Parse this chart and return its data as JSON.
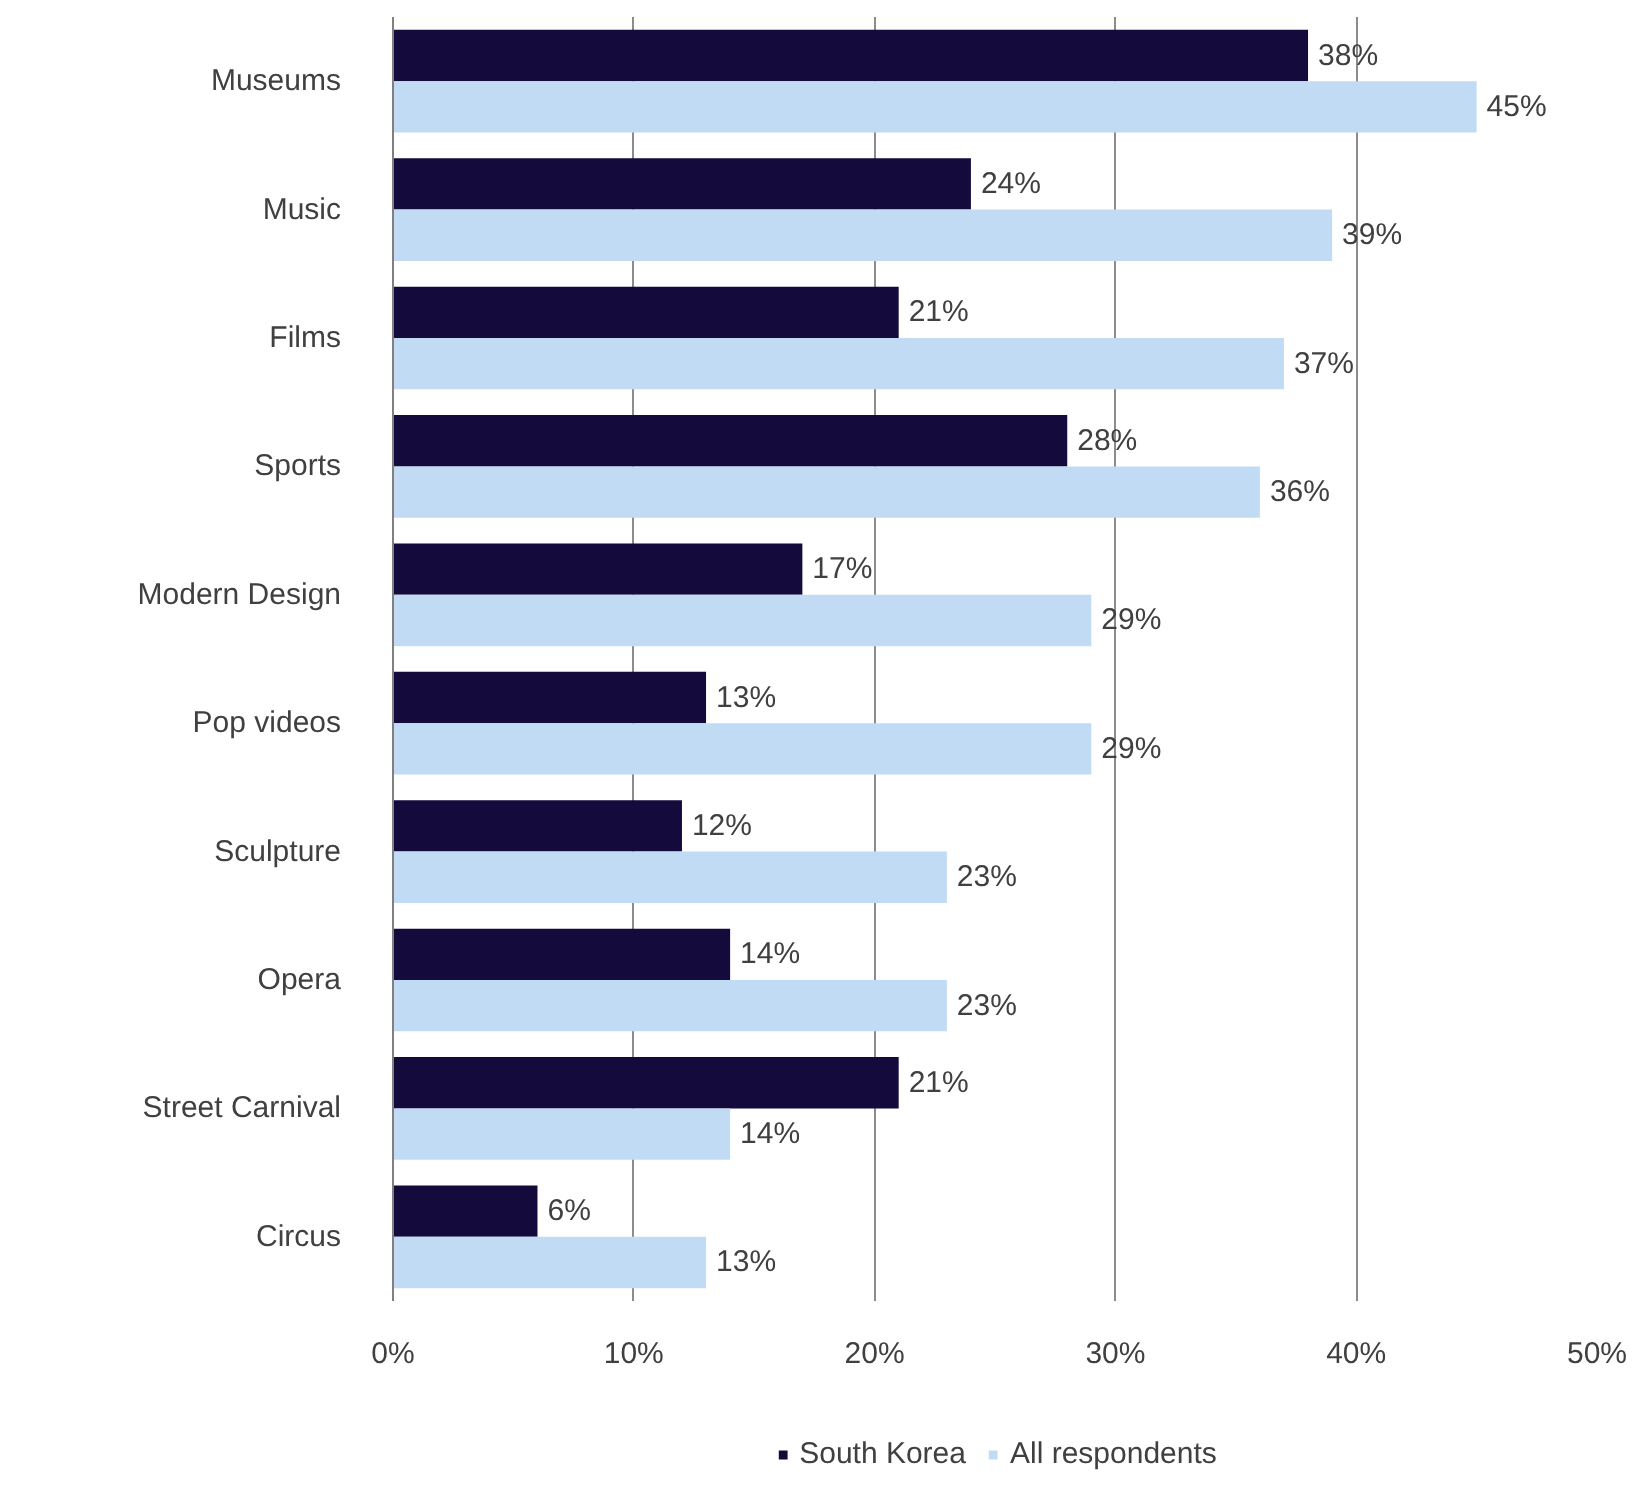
{
  "chart_data": {
    "type": "bar",
    "orientation": "horizontal",
    "categories": [
      "Museums",
      "Music",
      "Films",
      "Sports",
      "Modern Design",
      "Pop videos",
      "Sculpture",
      "Opera",
      "Street Carnival",
      "Circus"
    ],
    "series": [
      {
        "name": "South Korea",
        "color": "#140a3c",
        "values": [
          38,
          24,
          21,
          28,
          17,
          13,
          12,
          14,
          21,
          6
        ],
        "value_labels": [
          "38%",
          "24%",
          "21%",
          "28%",
          "17%",
          "13%",
          "12%",
          "14%",
          "21%",
          "6%"
        ]
      },
      {
        "name": "All respondents",
        "color": "#c2dbf5",
        "values": [
          45,
          39,
          37,
          36,
          29,
          29,
          23,
          23,
          14,
          13
        ],
        "value_labels": [
          "45%",
          "39%",
          "37%",
          "36%",
          "29%",
          "29%",
          "23%",
          "23%",
          "14%",
          "13%"
        ]
      }
    ],
    "xlim": [
      0,
      50
    ],
    "xticks": [
      {
        "value": 0,
        "label": "0%"
      },
      {
        "value": 10,
        "label": "10%"
      },
      {
        "value": 20,
        "label": "20%"
      },
      {
        "value": 30,
        "label": "30%"
      },
      {
        "value": 40,
        "label": "40%"
      },
      {
        "value": 50,
        "label": "50%"
      }
    ],
    "grid": "x",
    "legend": "bottom"
  }
}
